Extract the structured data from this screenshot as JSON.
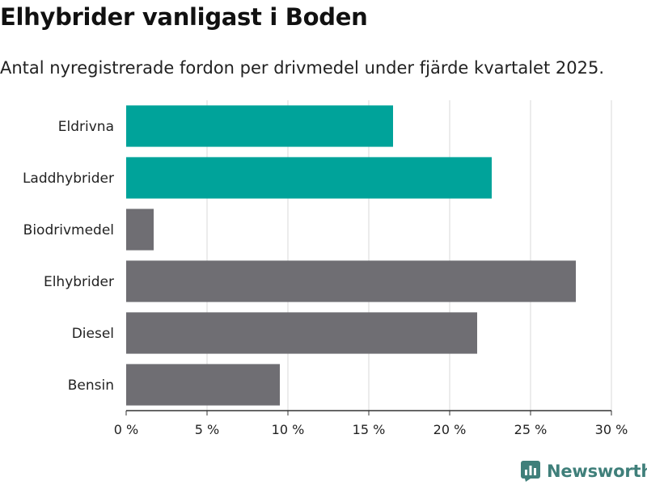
{
  "header": {
    "title": "Elhybrider vanligast i Boden",
    "subtitle": "Antal nyregistrerade fordon per drivmedel under fjärde kvartalet 2025."
  },
  "brand": {
    "name": "Newsworthy",
    "icon": "bar-chart-logo-icon",
    "color": "#3f7f7a"
  },
  "colors": {
    "highlight": "#00a39a",
    "default": "#6f6e73",
    "grid": "#d9d9d9",
    "axis": "#333333"
  },
  "chart_data": {
    "type": "bar",
    "orientation": "horizontal",
    "title": "Elhybrider vanligast i Boden",
    "subtitle": "Antal nyregistrerade fordon per drivmedel under fjärde kvartalet 2025.",
    "xlabel": "",
    "ylabel": "",
    "categories": [
      "Eldrivna",
      "Laddhybrider",
      "Biodrivmedel",
      "Elhybrider",
      "Diesel",
      "Bensin"
    ],
    "values": [
      16.5,
      22.6,
      1.7,
      27.8,
      21.7,
      9.5
    ],
    "highlight": [
      true,
      true,
      false,
      false,
      false,
      false
    ],
    "xlim": [
      0,
      30
    ],
    "ticks": [
      0,
      5,
      10,
      15,
      20,
      25,
      30
    ],
    "tick_labels": [
      "0 %",
      "5 %",
      "10 %",
      "15 %",
      "20 %",
      "25 %",
      "30 %"
    ],
    "grid": true,
    "legend": "none"
  }
}
